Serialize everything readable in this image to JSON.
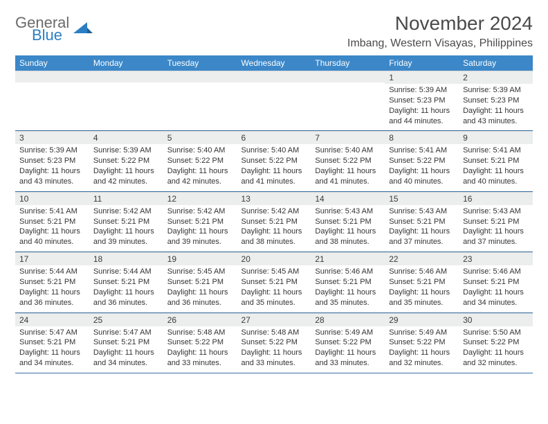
{
  "logo": {
    "word1": "General",
    "word2": "Blue"
  },
  "title": "November 2024",
  "location": "Imbang, Western Visayas, Philippines",
  "colors": {
    "header_bg": "#3b87c8",
    "header_text": "#ffffff",
    "daynum_bg": "#eceded",
    "row_border": "#3b6fa0",
    "logo_gray": "#6a6a6a",
    "logo_blue": "#2a7fc4",
    "body_text": "#333333"
  },
  "day_headers": [
    "Sunday",
    "Monday",
    "Tuesday",
    "Wednesday",
    "Thursday",
    "Friday",
    "Saturday"
  ],
  "weeks": [
    [
      {
        "n": "",
        "sr": "",
        "ss": "",
        "dl": ""
      },
      {
        "n": "",
        "sr": "",
        "ss": "",
        "dl": ""
      },
      {
        "n": "",
        "sr": "",
        "ss": "",
        "dl": ""
      },
      {
        "n": "",
        "sr": "",
        "ss": "",
        "dl": ""
      },
      {
        "n": "",
        "sr": "",
        "ss": "",
        "dl": ""
      },
      {
        "n": "1",
        "sr": "Sunrise: 5:39 AM",
        "ss": "Sunset: 5:23 PM",
        "dl": "Daylight: 11 hours and 44 minutes."
      },
      {
        "n": "2",
        "sr": "Sunrise: 5:39 AM",
        "ss": "Sunset: 5:23 PM",
        "dl": "Daylight: 11 hours and 43 minutes."
      }
    ],
    [
      {
        "n": "3",
        "sr": "Sunrise: 5:39 AM",
        "ss": "Sunset: 5:23 PM",
        "dl": "Daylight: 11 hours and 43 minutes."
      },
      {
        "n": "4",
        "sr": "Sunrise: 5:39 AM",
        "ss": "Sunset: 5:22 PM",
        "dl": "Daylight: 11 hours and 42 minutes."
      },
      {
        "n": "5",
        "sr": "Sunrise: 5:40 AM",
        "ss": "Sunset: 5:22 PM",
        "dl": "Daylight: 11 hours and 42 minutes."
      },
      {
        "n": "6",
        "sr": "Sunrise: 5:40 AM",
        "ss": "Sunset: 5:22 PM",
        "dl": "Daylight: 11 hours and 41 minutes."
      },
      {
        "n": "7",
        "sr": "Sunrise: 5:40 AM",
        "ss": "Sunset: 5:22 PM",
        "dl": "Daylight: 11 hours and 41 minutes."
      },
      {
        "n": "8",
        "sr": "Sunrise: 5:41 AM",
        "ss": "Sunset: 5:22 PM",
        "dl": "Daylight: 11 hours and 40 minutes."
      },
      {
        "n": "9",
        "sr": "Sunrise: 5:41 AM",
        "ss": "Sunset: 5:21 PM",
        "dl": "Daylight: 11 hours and 40 minutes."
      }
    ],
    [
      {
        "n": "10",
        "sr": "Sunrise: 5:41 AM",
        "ss": "Sunset: 5:21 PM",
        "dl": "Daylight: 11 hours and 40 minutes."
      },
      {
        "n": "11",
        "sr": "Sunrise: 5:42 AM",
        "ss": "Sunset: 5:21 PM",
        "dl": "Daylight: 11 hours and 39 minutes."
      },
      {
        "n": "12",
        "sr": "Sunrise: 5:42 AM",
        "ss": "Sunset: 5:21 PM",
        "dl": "Daylight: 11 hours and 39 minutes."
      },
      {
        "n": "13",
        "sr": "Sunrise: 5:42 AM",
        "ss": "Sunset: 5:21 PM",
        "dl": "Daylight: 11 hours and 38 minutes."
      },
      {
        "n": "14",
        "sr": "Sunrise: 5:43 AM",
        "ss": "Sunset: 5:21 PM",
        "dl": "Daylight: 11 hours and 38 minutes."
      },
      {
        "n": "15",
        "sr": "Sunrise: 5:43 AM",
        "ss": "Sunset: 5:21 PM",
        "dl": "Daylight: 11 hours and 37 minutes."
      },
      {
        "n": "16",
        "sr": "Sunrise: 5:43 AM",
        "ss": "Sunset: 5:21 PM",
        "dl": "Daylight: 11 hours and 37 minutes."
      }
    ],
    [
      {
        "n": "17",
        "sr": "Sunrise: 5:44 AM",
        "ss": "Sunset: 5:21 PM",
        "dl": "Daylight: 11 hours and 36 minutes."
      },
      {
        "n": "18",
        "sr": "Sunrise: 5:44 AM",
        "ss": "Sunset: 5:21 PM",
        "dl": "Daylight: 11 hours and 36 minutes."
      },
      {
        "n": "19",
        "sr": "Sunrise: 5:45 AM",
        "ss": "Sunset: 5:21 PM",
        "dl": "Daylight: 11 hours and 36 minutes."
      },
      {
        "n": "20",
        "sr": "Sunrise: 5:45 AM",
        "ss": "Sunset: 5:21 PM",
        "dl": "Daylight: 11 hours and 35 minutes."
      },
      {
        "n": "21",
        "sr": "Sunrise: 5:46 AM",
        "ss": "Sunset: 5:21 PM",
        "dl": "Daylight: 11 hours and 35 minutes."
      },
      {
        "n": "22",
        "sr": "Sunrise: 5:46 AM",
        "ss": "Sunset: 5:21 PM",
        "dl": "Daylight: 11 hours and 35 minutes."
      },
      {
        "n": "23",
        "sr": "Sunrise: 5:46 AM",
        "ss": "Sunset: 5:21 PM",
        "dl": "Daylight: 11 hours and 34 minutes."
      }
    ],
    [
      {
        "n": "24",
        "sr": "Sunrise: 5:47 AM",
        "ss": "Sunset: 5:21 PM",
        "dl": "Daylight: 11 hours and 34 minutes."
      },
      {
        "n": "25",
        "sr": "Sunrise: 5:47 AM",
        "ss": "Sunset: 5:21 PM",
        "dl": "Daylight: 11 hours and 34 minutes."
      },
      {
        "n": "26",
        "sr": "Sunrise: 5:48 AM",
        "ss": "Sunset: 5:22 PM",
        "dl": "Daylight: 11 hours and 33 minutes."
      },
      {
        "n": "27",
        "sr": "Sunrise: 5:48 AM",
        "ss": "Sunset: 5:22 PM",
        "dl": "Daylight: 11 hours and 33 minutes."
      },
      {
        "n": "28",
        "sr": "Sunrise: 5:49 AM",
        "ss": "Sunset: 5:22 PM",
        "dl": "Daylight: 11 hours and 33 minutes."
      },
      {
        "n": "29",
        "sr": "Sunrise: 5:49 AM",
        "ss": "Sunset: 5:22 PM",
        "dl": "Daylight: 11 hours and 32 minutes."
      },
      {
        "n": "30",
        "sr": "Sunrise: 5:50 AM",
        "ss": "Sunset: 5:22 PM",
        "dl": "Daylight: 11 hours and 32 minutes."
      }
    ]
  ]
}
